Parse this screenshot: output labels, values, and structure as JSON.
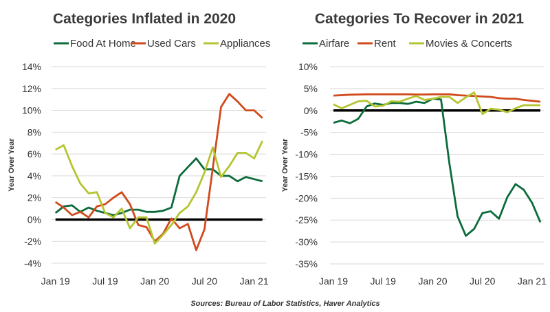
{
  "source": "Sources: Bureau of Labor Statistics, Haver Analytics",
  "chart_data": [
    {
      "type": "line",
      "title": "Categories Inflated in 2020",
      "ylabel": "Year Over Year",
      "xlabel": "",
      "x_tick_labels": [
        "Jan 19",
        "Jul 19",
        "Jan 20",
        "Jul 20",
        "Jan 21"
      ],
      "x": [
        "2019-01",
        "2019-02",
        "2019-03",
        "2019-04",
        "2019-05",
        "2019-06",
        "2019-07",
        "2019-08",
        "2019-09",
        "2019-10",
        "2019-11",
        "2019-12",
        "2020-01",
        "2020-02",
        "2020-03",
        "2020-04",
        "2020-05",
        "2020-06",
        "2020-07",
        "2020-08",
        "2020-09",
        "2020-10",
        "2020-11",
        "2020-12",
        "2021-01",
        "2021-02"
      ],
      "ylim": [
        -4,
        14
      ],
      "yticks": [
        -4,
        -2,
        0,
        2,
        4,
        6,
        8,
        10,
        12,
        14
      ],
      "ytick_labels": [
        "-4%",
        "-2%",
        "0%",
        "2%",
        "4%",
        "6%",
        "8%",
        "10%",
        "12%",
        "14%"
      ],
      "grid": true,
      "legend_position": "top",
      "series": [
        {
          "name": "Food At Home",
          "color": "#0b6b3a",
          "values": [
            0.6,
            1.2,
            1.3,
            0.7,
            1.1,
            0.8,
            0.6,
            0.4,
            0.6,
            0.9,
            0.9,
            0.7,
            0.7,
            0.8,
            1.1,
            4.0,
            4.8,
            5.6,
            4.6,
            4.6,
            4.0,
            4.0,
            3.5,
            3.9,
            3.7,
            3.5
          ]
        },
        {
          "name": "Used Cars",
          "color": "#d04a1c",
          "values": [
            1.6,
            1.1,
            0.4,
            0.7,
            0.2,
            1.2,
            1.4,
            2.0,
            2.5,
            1.4,
            -0.5,
            -0.7,
            -2.0,
            -1.3,
            0.1,
            -0.8,
            -0.4,
            -2.8,
            -0.9,
            4.7,
            10.3,
            11.5,
            10.8,
            10.0,
            10.0,
            9.3
          ]
        },
        {
          "name": "Appliances",
          "color": "#b5c531",
          "values": [
            6.4,
            6.8,
            4.9,
            3.3,
            2.4,
            2.5,
            0.6,
            0.2,
            1.0,
            -0.8,
            0.2,
            0.2,
            -2.2,
            -1.4,
            -0.5,
            0.6,
            1.2,
            2.5,
            4.3,
            6.6,
            3.9,
            4.9,
            6.1,
            6.1,
            5.6,
            7.2
          ]
        }
      ],
      "baseline": 0
    },
    {
      "type": "line",
      "title": "Categories To Recover in 2021",
      "ylabel": "Year Over Year",
      "xlabel": "",
      "x_tick_labels": [
        "Jan 19",
        "Jul 19",
        "Jan 20",
        "Jul 20",
        "Jan 21"
      ],
      "x": [
        "2019-01",
        "2019-02",
        "2019-03",
        "2019-04",
        "2019-05",
        "2019-06",
        "2019-07",
        "2019-08",
        "2019-09",
        "2019-10",
        "2019-11",
        "2019-12",
        "2020-01",
        "2020-02",
        "2020-03",
        "2020-04",
        "2020-05",
        "2020-06",
        "2020-07",
        "2020-08",
        "2020-09",
        "2020-10",
        "2020-11",
        "2020-12",
        "2021-01",
        "2021-02"
      ],
      "ylim": [
        -35,
        10
      ],
      "yticks": [
        -35,
        -30,
        -25,
        -20,
        -15,
        -10,
        -5,
        0,
        5,
        10
      ],
      "ytick_labels": [
        "-35%",
        "-30%",
        "-25%",
        "-20%",
        "-15%",
        "-10%",
        "-5%",
        "0%",
        "5%",
        "10%"
      ],
      "grid": true,
      "legend_position": "top",
      "series": [
        {
          "name": "Airfare",
          "color": "#0b6b3a",
          "values": [
            -2.8,
            -2.3,
            -2.9,
            -1.9,
            0.9,
            1.6,
            1.3,
            1.7,
            1.7,
            1.5,
            2.0,
            1.7,
            2.7,
            2.5,
            -12.0,
            -24.2,
            -28.6,
            -27.0,
            -23.4,
            -23.0,
            -24.7,
            -19.8,
            -16.8,
            -18.1,
            -21.1,
            -25.5
          ]
        },
        {
          "name": "Rent",
          "color": "#d04a1c",
          "values": [
            3.4,
            3.5,
            3.6,
            3.65,
            3.7,
            3.7,
            3.7,
            3.7,
            3.7,
            3.7,
            3.65,
            3.65,
            3.7,
            3.7,
            3.7,
            3.5,
            3.4,
            3.3,
            3.2,
            3.1,
            2.8,
            2.7,
            2.7,
            2.4,
            2.2,
            2.0
          ]
        },
        {
          "name": "Movies & Concerts",
          "color": "#b5c531",
          "values": [
            1.4,
            0.5,
            1.3,
            2.1,
            2.2,
            0.9,
            1.1,
            2.1,
            2.0,
            2.7,
            3.3,
            2.4,
            2.7,
            3.1,
            3.1,
            1.7,
            3.0,
            4.1,
            -0.8,
            0.4,
            0.2,
            -0.4,
            0.5,
            1.2,
            1.2,
            1.2
          ]
        }
      ],
      "baseline": 0
    }
  ]
}
